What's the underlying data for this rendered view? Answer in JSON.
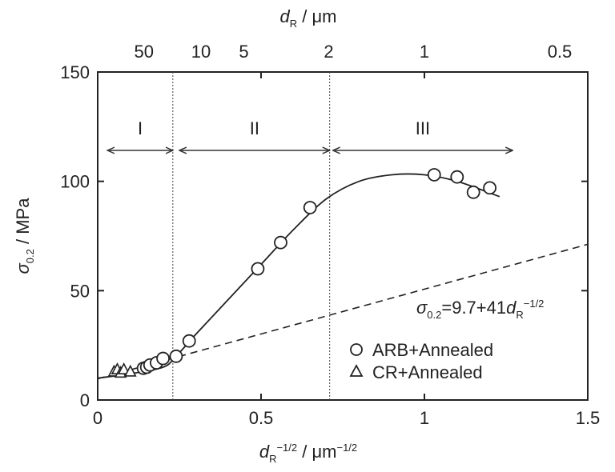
{
  "chart_data": {
    "type": "scatter",
    "xlabel": "d_R^-1/2 / μm^-1/2",
    "ylabel": "σ_0.2 / MPa",
    "top_axis_label": "d_R / μm",
    "xlim": [
      0,
      1.5
    ],
    "ylim": [
      0,
      150
    ],
    "x_ticks": [
      {
        "value": 0,
        "label": "0"
      },
      {
        "value": 0.5,
        "label": "0.5"
      },
      {
        "value": 1,
        "label": "1"
      },
      {
        "value": 1.5,
        "label": "1.5"
      }
    ],
    "y_ticks": [
      {
        "value": 0,
        "label": "0"
      },
      {
        "value": 50,
        "label": "50"
      },
      {
        "value": 100,
        "label": "100"
      },
      {
        "value": 150,
        "label": "150"
      }
    ],
    "top_ticks": [
      {
        "d": 50,
        "label": "50"
      },
      {
        "d": 10,
        "label": "10"
      },
      {
        "d": 5,
        "label": "5"
      },
      {
        "d": 2,
        "label": "2"
      },
      {
        "d": 1,
        "label": "1"
      },
      {
        "d": 0.5,
        "label": "0.5"
      }
    ],
    "series": [
      {
        "name": "ARB+Annealed",
        "marker": "circle",
        "points": [
          {
            "x": 0.14,
            "y": 14.5
          },
          {
            "x": 0.15,
            "y": 15
          },
          {
            "x": 0.16,
            "y": 16
          },
          {
            "x": 0.18,
            "y": 17
          },
          {
            "x": 0.2,
            "y": 19
          },
          {
            "x": 0.24,
            "y": 20
          },
          {
            "x": 0.28,
            "y": 27
          },
          {
            "x": 0.49,
            "y": 60
          },
          {
            "x": 0.56,
            "y": 72
          },
          {
            "x": 0.65,
            "y": 88
          },
          {
            "x": 1.03,
            "y": 103
          },
          {
            "x": 1.1,
            "y": 102
          },
          {
            "x": 1.15,
            "y": 95
          },
          {
            "x": 1.2,
            "y": 97
          }
        ]
      },
      {
        "name": "CR+Annealed",
        "marker": "triangle",
        "points": [
          {
            "x": 0.05,
            "y": 13
          },
          {
            "x": 0.06,
            "y": 14
          },
          {
            "x": 0.07,
            "y": 12.5
          },
          {
            "x": 0.08,
            "y": 14
          },
          {
            "x": 0.1,
            "y": 13
          }
        ]
      }
    ],
    "fit_curve": {
      "points": [
        [
          0.0,
          10
        ],
        [
          0.1,
          12
        ],
        [
          0.2,
          15
        ],
        [
          0.24,
          20
        ],
        [
          0.3,
          30
        ],
        [
          0.4,
          46
        ],
        [
          0.5,
          62
        ],
        [
          0.6,
          78
        ],
        [
          0.7,
          92
        ],
        [
          0.8,
          100
        ],
        [
          0.9,
          103
        ],
        [
          1.0,
          103
        ],
        [
          1.1,
          100
        ],
        [
          1.23,
          93
        ]
      ]
    },
    "hall_petch_line": {
      "label": "σ_0.2=9.7+41d_R^-1/2",
      "intercept": 9.7,
      "slope": 41,
      "x_range": [
        0,
        1.5
      ]
    },
    "regions": [
      {
        "label": "I",
        "x_start": 0.03,
        "x_end": 0.23
      },
      {
        "label": "II",
        "x_start": 0.25,
        "x_end": 0.71
      },
      {
        "label": "III",
        "x_start": 0.72,
        "x_end": 1.27
      }
    ],
    "boundaries": [
      0.23,
      0.71
    ],
    "legend": {
      "position": "lower-right"
    }
  }
}
